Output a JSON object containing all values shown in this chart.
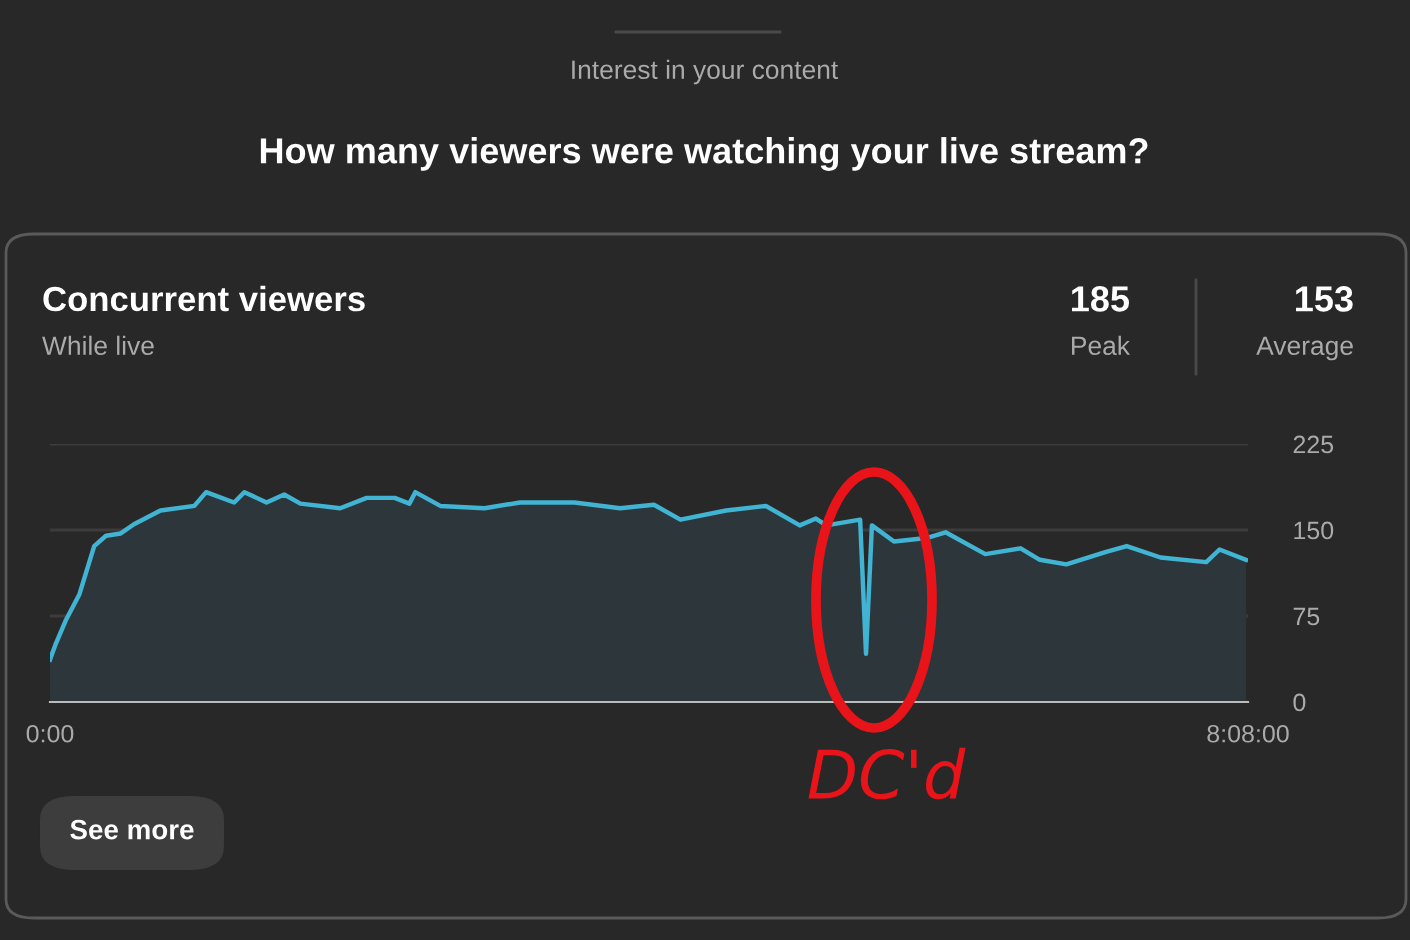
{
  "chart_data": {
    "type": "area",
    "title": "Concurrent viewers",
    "subtitle": "While live",
    "annotations": [
      "Interest in your content",
      "How many viewers were watching your live stream?",
      "185",
      "Peak",
      "153",
      "Average",
      "See more",
      "DC'd"
    ],
    "x": [
      0,
      0.04,
      0.11,
      0.2,
      0.3,
      0.38,
      0.48,
      0.57,
      0.75,
      0.98,
      1.06,
      1.25,
      1.32,
      1.47,
      1.59,
      1.7,
      1.97,
      2.15,
      2.34,
      2.44,
      2.48,
      2.65,
      2.95,
      3.19,
      3.56,
      3.87,
      4.1,
      4.28,
      4.59,
      4.86,
      5.09,
      5.2,
      5.27,
      5.5,
      5.54,
      5.58,
      5.73,
      5.95,
      6.08,
      6.35,
      6.59,
      6.72,
      6.9,
      7.17,
      7.31,
      7.54,
      7.85,
      7.94,
      8.12
    ],
    "series": [
      {
        "color": "#41b3d3",
        "values": [
          37,
          51,
          72,
          94,
          136,
          145,
          147,
          155,
          167,
          171,
          183,
          174,
          183,
          174,
          181,
          173,
          169,
          178,
          178,
          173,
          183,
          171,
          169,
          174,
          174,
          169,
          172,
          159,
          167,
          171,
          154,
          160,
          154,
          159,
          42,
          154,
          140,
          143,
          148,
          129,
          134,
          124,
          120,
          131,
          136,
          126,
          122,
          133,
          124
        ]
      }
    ],
    "xlim": [
      0,
      8.1333
    ],
    "xticks": [
      {
        "value": 0,
        "label": "0:00"
      },
      {
        "value": 8.1333,
        "label": "8:08:00"
      }
    ],
    "ylim": [
      0,
      225
    ],
    "yticks": [
      0,
      75,
      150,
      225
    ],
    "grid": "y",
    "legend": false,
    "marker": "none",
    "line_style": "solid"
  }
}
